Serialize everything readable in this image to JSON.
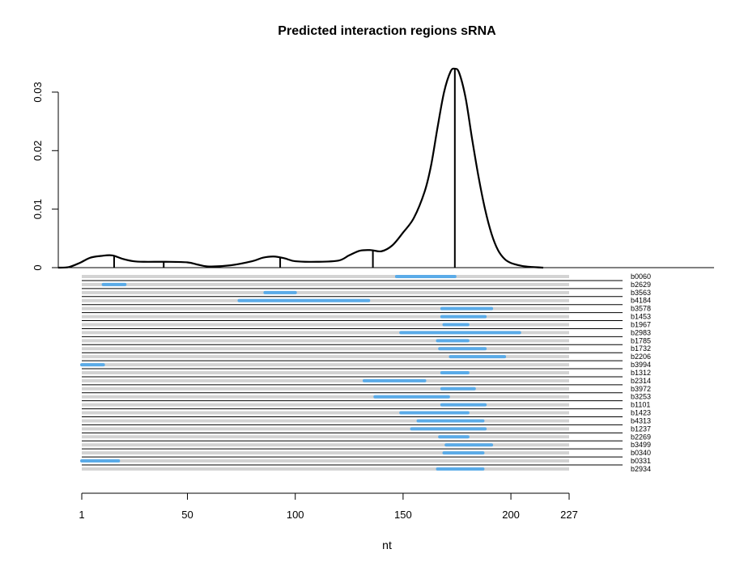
{
  "chart_data": {
    "type": "density_with_intervals",
    "title": "Predicted interaction regions sRNA",
    "xlabel": "nt",
    "ylabel": "",
    "density": {
      "ylim": [
        0,
        0.034
      ],
      "yticks": [
        0,
        0.01,
        0.02,
        0.03
      ],
      "ytick_labels": [
        "0",
        "0.01",
        "0.02",
        "0.03"
      ],
      "curve_color": "#000000",
      "x": [
        -10,
        -5,
        0,
        5,
        10,
        15,
        20,
        25,
        30,
        40,
        50,
        55,
        60,
        70,
        80,
        85,
        90,
        95,
        100,
        110,
        120,
        125,
        130,
        135,
        140,
        145,
        150,
        155,
        160,
        163,
        166,
        169,
        172,
        174,
        176,
        179,
        182,
        185,
        188,
        191,
        194,
        197,
        200,
        205,
        210,
        215
      ],
      "y": [
        0,
        0.0001,
        0.0008,
        0.0017,
        0.002,
        0.0021,
        0.0015,
        0.0011,
        0.001,
        0.001,
        0.0009,
        0.0005,
        0.0002,
        0.0004,
        0.0011,
        0.0017,
        0.0019,
        0.0016,
        0.0011,
        0.001,
        0.0012,
        0.0021,
        0.0029,
        0.003,
        0.0028,
        0.0038,
        0.006,
        0.0085,
        0.013,
        0.0175,
        0.024,
        0.03,
        0.0335,
        0.034,
        0.0333,
        0.029,
        0.022,
        0.0155,
        0.01,
        0.0058,
        0.003,
        0.0015,
        0.0008,
        0.0003,
        0.0001,
        0
      ],
      "peaks": [
        16,
        39,
        93,
        136,
        174
      ]
    },
    "xaxis": {
      "range": [
        1,
        227
      ],
      "ticks": [
        1,
        50,
        100,
        150,
        200,
        227
      ],
      "tick_labels": [
        "1",
        "50",
        "100",
        "150",
        "200",
        "227"
      ]
    },
    "intervals": {
      "background_color": "#d3d3d3",
      "highlight_color": "#5aabe8",
      "separator_color": "#000000",
      "rows": [
        {
          "label": "b0060",
          "start": 147,
          "end": 174
        },
        {
          "label": "b2629",
          "start": 11,
          "end": 21
        },
        {
          "label": "b3563",
          "start": 86,
          "end": 100
        },
        {
          "label": "b4184",
          "start": 74,
          "end": 134
        },
        {
          "label": "b3578",
          "start": 168,
          "end": 191
        },
        {
          "label": "b1453",
          "start": 168,
          "end": 188
        },
        {
          "label": "b1967",
          "start": 169,
          "end": 180
        },
        {
          "label": "b2983",
          "start": 149,
          "end": 204
        },
        {
          "label": "b1785",
          "start": 166,
          "end": 180
        },
        {
          "label": "b1732",
          "start": 167,
          "end": 188
        },
        {
          "label": "b2206",
          "start": 172,
          "end": 197
        },
        {
          "label": "b3994",
          "start": 1,
          "end": 11
        },
        {
          "label": "b1312",
          "start": 168,
          "end": 180
        },
        {
          "label": "b2314",
          "start": 132,
          "end": 160
        },
        {
          "label": "b3972",
          "start": 168,
          "end": 183
        },
        {
          "label": "b3253",
          "start": 137,
          "end": 171
        },
        {
          "label": "b1101",
          "start": 168,
          "end": 188
        },
        {
          "label": "b1423",
          "start": 149,
          "end": 180
        },
        {
          "label": "b4313",
          "start": 157,
          "end": 187
        },
        {
          "label": "b1237",
          "start": 154,
          "end": 188
        },
        {
          "label": "b2269",
          "start": 167,
          "end": 180
        },
        {
          "label": "b3499",
          "start": 170,
          "end": 191
        },
        {
          "label": "b0340",
          "start": 169,
          "end": 187
        },
        {
          "label": "b0331",
          "start": 1,
          "end": 18
        },
        {
          "label": "b2934",
          "start": 166,
          "end": 187
        }
      ]
    }
  }
}
